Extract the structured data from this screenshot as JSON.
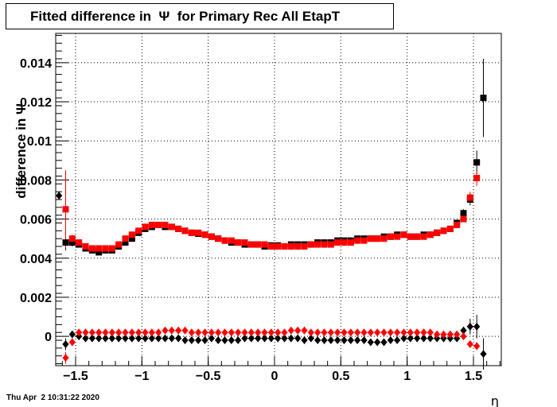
{
  "title": "Fitted difference in  Ψ  for Primary Rec All EtapT",
  "timestamp": "Thu Apr  2 10:31:22 2020",
  "chart_data": {
    "type": "scatter",
    "title": "Fitted difference in  Ψ  for Primary Rec All EtapT",
    "xlabel": "η",
    "ylabel": "difference in  Ψ",
    "xlim": [
      -1.65,
      1.71
    ],
    "ylim": [
      -0.0015,
      0.0155
    ],
    "grid": true,
    "x_ticks": [
      -1.5,
      -1,
      -0.5,
      0,
      0.5,
      1,
      1.5
    ],
    "x_tick_labels": [
      "−1.5",
      "−1",
      "−0.5",
      "0",
      "0.5",
      "1",
      "1.5"
    ],
    "y_ticks": [
      0,
      0.002,
      0.004,
      0.006,
      0.008,
      0.01,
      0.012,
      0.014
    ],
    "y_tick_labels": [
      "0",
      "0.002",
      "0.004",
      "0.006",
      "0.008",
      "0.01",
      "0.012",
      "0.014"
    ],
    "colors": {
      "black": "#000000",
      "red": "#ff0000"
    },
    "series": [
      {
        "marker": "square",
        "color": "#000000",
        "x": [
          -1.575,
          -1.525,
          -1.475,
          -1.425,
          -1.375,
          -1.325,
          -1.275,
          -1.225,
          -1.175,
          -1.125,
          -1.075,
          -1.025,
          -0.975,
          -0.925,
          -0.875,
          -0.825,
          -0.775,
          -0.725,
          -0.675,
          -0.625,
          -0.575,
          -0.525,
          -0.475,
          -0.425,
          -0.375,
          -0.325,
          -0.275,
          -0.225,
          -0.175,
          -0.125,
          -0.075,
          -0.025,
          0.025,
          0.075,
          0.125,
          0.175,
          0.225,
          0.275,
          0.325,
          0.375,
          0.425,
          0.475,
          0.525,
          0.575,
          0.625,
          0.675,
          0.725,
          0.775,
          0.825,
          0.875,
          0.925,
          0.975,
          1.025,
          1.075,
          1.125,
          1.175,
          1.225,
          1.275,
          1.325,
          1.375,
          1.425,
          1.475,
          1.525,
          1.575
        ],
        "y": [
          0.0048,
          0.0048,
          0.0047,
          0.0045,
          0.0044,
          0.0043,
          0.0044,
          0.0044,
          0.0046,
          0.0048,
          0.005,
          0.0053,
          0.0055,
          0.0056,
          0.0057,
          0.0056,
          0.0056,
          0.0055,
          0.0054,
          0.0053,
          0.00525,
          0.0052,
          0.0051,
          0.005,
          0.0049,
          0.0048,
          0.0048,
          0.0047,
          0.0047,
          0.0047,
          0.0046,
          0.00465,
          0.00465,
          0.0046,
          0.0047,
          0.0047,
          0.0047,
          0.0047,
          0.0048,
          0.0048,
          0.0048,
          0.0049,
          0.0049,
          0.0049,
          0.005,
          0.005,
          0.005,
          0.005,
          0.0051,
          0.0051,
          0.0052,
          0.0052,
          0.0051,
          0.0051,
          0.0052,
          0.0052,
          0.0053,
          0.0054,
          0.0055,
          0.0058,
          0.0063,
          0.007,
          0.0089,
          0.0122
        ],
        "err": [
          0.0004,
          0.0002,
          0.0001,
          0.0001,
          0.0001,
          0.0001,
          0.0001,
          0.0001,
          0.0001,
          0.0001,
          0.0001,
          0.0001,
          0.0001,
          0.0001,
          0.0001,
          0.0001,
          0.0001,
          0.0001,
          0.0001,
          0.0001,
          0.0001,
          0.0001,
          0.0001,
          0.0001,
          0.0001,
          0.0001,
          0.0001,
          0.0001,
          0.0001,
          0.0001,
          0.0001,
          0.0001,
          0.0001,
          0.0001,
          0.0001,
          0.0001,
          0.0001,
          0.0001,
          0.0001,
          0.0001,
          0.0001,
          0.0001,
          0.0001,
          0.0001,
          0.0001,
          0.0001,
          0.0001,
          0.0001,
          0.0001,
          0.0001,
          0.0001,
          0.0001,
          0.0001,
          0.0001,
          0.0001,
          0.0001,
          0.0001,
          0.0001,
          0.0001,
          0.0001,
          0.0002,
          0.0003,
          0.0006,
          0.002
        ]
      },
      {
        "marker": "square",
        "color": "#ff0000",
        "x": [
          -1.575,
          -1.525,
          -1.475,
          -1.425,
          -1.375,
          -1.325,
          -1.275,
          -1.225,
          -1.175,
          -1.125,
          -1.075,
          -1.025,
          -0.975,
          -0.925,
          -0.875,
          -0.825,
          -0.775,
          -0.725,
          -0.675,
          -0.625,
          -0.575,
          -0.525,
          -0.475,
          -0.425,
          -0.375,
          -0.325,
          -0.275,
          -0.225,
          -0.175,
          -0.125,
          -0.075,
          -0.025,
          0.025,
          0.075,
          0.125,
          0.175,
          0.225,
          0.275,
          0.325,
          0.375,
          0.425,
          0.475,
          0.525,
          0.575,
          0.625,
          0.675,
          0.725,
          0.775,
          0.825,
          0.875,
          0.925,
          0.975,
          1.025,
          1.075,
          1.125,
          1.175,
          1.225,
          1.275,
          1.325,
          1.375,
          1.425,
          1.475,
          1.525
        ],
        "y": [
          0.0065,
          0.005,
          0.0048,
          0.0046,
          0.0045,
          0.0045,
          0.0045,
          0.0045,
          0.0047,
          0.005,
          0.0052,
          0.0054,
          0.0056,
          0.0057,
          0.0057,
          0.0057,
          0.0056,
          0.0055,
          0.0054,
          0.0053,
          0.0053,
          0.0052,
          0.0051,
          0.005,
          0.0049,
          0.0049,
          0.0048,
          0.0048,
          0.0047,
          0.0047,
          0.0047,
          0.0046,
          0.0046,
          0.0046,
          0.0046,
          0.0046,
          0.0046,
          0.0047,
          0.0047,
          0.0047,
          0.0047,
          0.0048,
          0.0048,
          0.0048,
          0.0049,
          0.0049,
          0.005,
          0.005,
          0.005,
          0.0051,
          0.0051,
          0.0052,
          0.0051,
          0.0051,
          0.0051,
          0.0052,
          0.0053,
          0.0054,
          0.0055,
          0.0057,
          0.006,
          0.0071,
          0.0081
        ],
        "err": [
          0.002,
          0.0002,
          0.0001,
          0.0001,
          0.0001,
          0.0001,
          0.0001,
          0.0001,
          0.0001,
          0.0001,
          0.0001,
          0.0001,
          0.0001,
          0.0001,
          0.0001,
          0.0001,
          0.0001,
          0.0001,
          0.0001,
          0.0001,
          0.0001,
          0.0001,
          0.0001,
          0.0001,
          0.0001,
          0.0001,
          0.0001,
          0.0001,
          0.0001,
          0.0001,
          0.0001,
          0.0001,
          0.0001,
          0.0001,
          0.0001,
          0.0001,
          0.0001,
          0.0001,
          0.0001,
          0.0001,
          0.0001,
          0.0001,
          0.0001,
          0.0001,
          0.0001,
          0.0001,
          0.0001,
          0.0001,
          0.0001,
          0.0001,
          0.0001,
          0.0001,
          0.0001,
          0.0001,
          0.0001,
          0.0001,
          0.0001,
          0.0001,
          0.0001,
          0.0001,
          0.0001,
          0.0003,
          0.0004
        ]
      },
      {
        "marker": "diamond",
        "color": "#000000",
        "x": [
          -1.625,
          -1.575,
          -1.525,
          -1.475,
          -1.425,
          -1.375,
          -1.325,
          -1.275,
          -1.225,
          -1.175,
          -1.125,
          -1.075,
          -1.025,
          -0.975,
          -0.925,
          -0.875,
          -0.825,
          -0.775,
          -0.725,
          -0.675,
          -0.625,
          -0.575,
          -0.525,
          -0.475,
          -0.425,
          -0.375,
          -0.325,
          -0.275,
          -0.225,
          -0.175,
          -0.125,
          -0.075,
          -0.025,
          0.025,
          0.075,
          0.125,
          0.175,
          0.225,
          0.275,
          0.325,
          0.375,
          0.425,
          0.475,
          0.525,
          0.575,
          0.625,
          0.675,
          0.725,
          0.775,
          0.825,
          0.875,
          0.925,
          0.975,
          1.025,
          1.075,
          1.125,
          1.175,
          1.225,
          1.275,
          1.325,
          1.375,
          1.425,
          1.475,
          1.525,
          1.575
        ],
        "y": [
          0.0072,
          -0.0004,
          0.0001,
          0.0,
          -0.0001,
          -0.0001,
          -0.0001,
          -0.0001,
          -0.0001,
          -0.0001,
          -0.0001,
          -0.0001,
          -0.0001,
          -0.0001,
          -0.0001,
          -0.0001,
          -0.0001,
          -0.0001,
          -0.0001,
          -0.0002,
          -0.0002,
          -0.0002,
          -0.0002,
          -0.0001,
          -0.0002,
          -0.0002,
          -0.0002,
          -0.0002,
          -0.0001,
          -0.0001,
          -0.0001,
          -0.0001,
          -0.0001,
          -0.0001,
          -0.0001,
          -0.0001,
          -0.0001,
          -0.0002,
          -0.0001,
          -0.0002,
          -0.0002,
          -0.0002,
          -0.0002,
          -0.0002,
          -0.0002,
          -0.0002,
          -0.0002,
          -0.0003,
          -0.0003,
          -0.0003,
          -0.0002,
          -0.0002,
          -0.0001,
          -0.0001,
          -0.0001,
          -0.0001,
          -0.0001,
          -0.0001,
          -0.0001,
          -0.0001,
          -0.0001,
          0.0003,
          0.0005,
          0.0005,
          -0.0009
        ],
        "err": [
          0.0002,
          0.0003,
          0.0001,
          0.0001,
          0.0001,
          0.0001,
          0.0001,
          0.0001,
          0.0001,
          0.0001,
          0.0001,
          0.0001,
          0.0001,
          0.0001,
          0.0001,
          0.0001,
          0.0001,
          0.0001,
          0.0001,
          0.0001,
          0.0001,
          0.0001,
          0.0001,
          0.0001,
          0.0001,
          0.0001,
          0.0001,
          0.0001,
          0.0001,
          0.0001,
          0.0001,
          0.0001,
          0.0001,
          0.0001,
          0.0001,
          0.0001,
          0.0001,
          0.0001,
          0.0001,
          0.0001,
          0.0001,
          0.0001,
          0.0001,
          0.0001,
          0.0001,
          0.0001,
          0.0001,
          0.0001,
          0.0001,
          0.0001,
          0.0001,
          0.0001,
          0.0001,
          0.0001,
          0.0001,
          0.0001,
          0.0001,
          0.0001,
          0.0001,
          0.0001,
          0.0001,
          0.0002,
          0.0004,
          0.0006,
          0.0008
        ]
      },
      {
        "marker": "diamond",
        "color": "#ff0000",
        "x": [
          -1.575,
          -1.525,
          -1.475,
          -1.425,
          -1.375,
          -1.325,
          -1.275,
          -1.225,
          -1.175,
          -1.125,
          -1.075,
          -1.025,
          -0.975,
          -0.925,
          -0.875,
          -0.825,
          -0.775,
          -0.725,
          -0.675,
          -0.625,
          -0.575,
          -0.525,
          -0.475,
          -0.425,
          -0.375,
          -0.325,
          -0.275,
          -0.225,
          -0.175,
          -0.125,
          -0.075,
          -0.025,
          0.025,
          0.075,
          0.125,
          0.175,
          0.225,
          0.275,
          0.325,
          0.375,
          0.425,
          0.475,
          0.525,
          0.575,
          0.625,
          0.675,
          0.725,
          0.775,
          0.825,
          0.875,
          0.925,
          0.975,
          1.025,
          1.075,
          1.125,
          1.175,
          1.225,
          1.275,
          1.325,
          1.375,
          1.425,
          1.475,
          1.525
        ],
        "y": [
          -0.0011,
          -0.0003,
          0.0002,
          0.0002,
          0.0002,
          0.0002,
          0.0002,
          0.0002,
          0.0002,
          0.0002,
          0.0002,
          0.0002,
          0.0002,
          0.0002,
          0.0002,
          0.0003,
          0.0003,
          0.0003,
          0.0003,
          0.0002,
          0.0002,
          0.0002,
          0.0002,
          0.0002,
          0.0002,
          0.0002,
          0.0002,
          0.0002,
          0.0002,
          0.0002,
          0.0002,
          0.0002,
          0.0002,
          0.0002,
          0.0003,
          0.0003,
          0.0003,
          0.0002,
          0.0002,
          0.0002,
          0.0002,
          0.0002,
          0.0002,
          0.0002,
          0.0002,
          0.0002,
          0.0002,
          0.0002,
          0.0002,
          0.0002,
          0.0002,
          0.0002,
          0.0002,
          0.0002,
          0.0002,
          0.0002,
          0.0001,
          0.0001,
          0.0001,
          0.0001,
          0.0,
          -0.0004,
          -0.0005
        ],
        "err": [
          0.0003,
          0.0002,
          0.0001,
          0.0001,
          0.0001,
          0.0001,
          0.0001,
          0.0001,
          0.0001,
          0.0001,
          0.0001,
          0.0001,
          0.0001,
          0.0001,
          0.0001,
          0.0001,
          0.0001,
          0.0001,
          0.0001,
          0.0001,
          0.0001,
          0.0001,
          0.0001,
          0.0001,
          0.0001,
          0.0001,
          0.0001,
          0.0001,
          0.0001,
          0.0001,
          0.0001,
          0.0001,
          0.0001,
          0.0001,
          0.0001,
          0.0001,
          0.0001,
          0.0001,
          0.0001,
          0.0001,
          0.0001,
          0.0001,
          0.0001,
          0.0001,
          0.0001,
          0.0001,
          0.0001,
          0.0001,
          0.0001,
          0.0001,
          0.0001,
          0.0001,
          0.0001,
          0.0001,
          0.0001,
          0.0001,
          0.0001,
          0.0001,
          0.0001,
          0.0001,
          0.0001,
          0.0001,
          0.0002
        ]
      }
    ]
  }
}
